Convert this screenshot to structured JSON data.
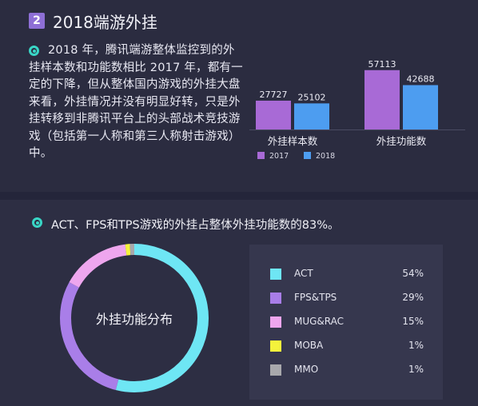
{
  "section": {
    "number": "2",
    "title": "2018端游外挂"
  },
  "paragraph": "2018 年，腾讯端游整体监控到的外挂样本数和功能数相比 2017 年，都有一定的下降，但从整体国内游戏的外挂大盘来看，外挂情况并没有明显好转，只是外挂转移到非腾讯平台上的头部战术竞技游戏（包括第一人称和第三人称射击游戏）中。",
  "headline": "ACT、FPS和TPS游戏的外挂占整体外挂功能数的83%。",
  "donut_center_label": "外挂功能分布",
  "colors": {
    "bg": "#2b2c40",
    "accent": "#39d6c6",
    "series_2017": "#a86ad6",
    "series_2018": "#4d9df0"
  },
  "chart_data": [
    {
      "type": "bar",
      "categories": [
        "外挂样本数",
        "外挂功能数"
      ],
      "series": [
        {
          "name": "2017",
          "values": [
            27727,
            57113
          ],
          "color": "#a86ad6"
        },
        {
          "name": "2018",
          "values": [
            25102,
            42688
          ],
          "color": "#4d9df0"
        }
      ],
      "ylim": [
        0,
        60000
      ],
      "legend": "bottom-left"
    },
    {
      "type": "pie",
      "donut": true,
      "title": "外挂功能分布",
      "labels": [
        "ACT",
        "FPS&TPS",
        "MUG&RAC",
        "MOBA",
        "MMO"
      ],
      "values": [
        54,
        29,
        15,
        1,
        1
      ],
      "value_labels": [
        "54%",
        "29%",
        "15%",
        "1%",
        "1%"
      ],
      "colors": [
        "#6ee6f4",
        "#a97ee8",
        "#eea6ee",
        "#f4f23c",
        "#a8a8ac"
      ],
      "legend": "right"
    }
  ]
}
